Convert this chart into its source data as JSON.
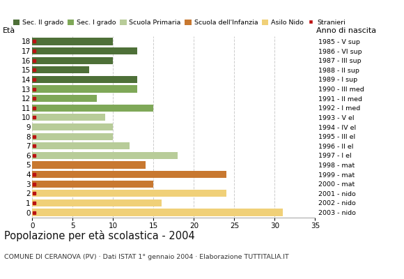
{
  "ages": [
    18,
    17,
    16,
    15,
    14,
    13,
    12,
    11,
    10,
    9,
    8,
    7,
    6,
    5,
    4,
    3,
    2,
    1,
    0
  ],
  "years": [
    "1985 - V sup",
    "1986 - VI sup",
    "1987 - III sup",
    "1988 - II sup",
    "1989 - I sup",
    "1990 - III med",
    "1991 - II med",
    "1992 - I med",
    "1993 - V el",
    "1994 - IV el",
    "1995 - III el",
    "1996 - II el",
    "1997 - I el",
    "1998 - mat",
    "1999 - mat",
    "2000 - mat",
    "2001 - nido",
    "2002 - nido",
    "2003 - nido"
  ],
  "values": [
    10,
    13,
    10,
    7,
    13,
    13,
    8,
    15,
    9,
    10,
    10,
    12,
    18,
    14,
    24,
    15,
    24,
    16,
    31
  ],
  "colors": [
    "#4e7038",
    "#4e7038",
    "#4e7038",
    "#4e7038",
    "#4e7038",
    "#7fa858",
    "#7fa858",
    "#7fa858",
    "#b8cc99",
    "#b8cc99",
    "#b8cc99",
    "#b8cc99",
    "#b8cc99",
    "#c87830",
    "#c87830",
    "#c87830",
    "#f0d078",
    "#f0d078",
    "#f0d078"
  ],
  "stranieri_ages": [
    18,
    17,
    16,
    15,
    14,
    13,
    12,
    11,
    10,
    8,
    7,
    6,
    4,
    3,
    2,
    1,
    0
  ],
  "legend_labels": [
    "Sec. II grado",
    "Sec. I grado",
    "Scuola Primaria",
    "Scuola dell'Infanzia",
    "Asilo Nido",
    "Stranieri"
  ],
  "legend_colors": [
    "#4e7038",
    "#7fa858",
    "#b8cc99",
    "#c87830",
    "#f0d078",
    "#bb1111"
  ],
  "title": "Popolazione per età scolastica - 2004",
  "subtitle": "COMUNE DI CERANOVA (PV) · Dati ISTAT 1° gennaio 2004 · Elaborazione TUTTITALIA.IT",
  "eta_label": "Età",
  "anno_label": "Anno di nascita",
  "xlim": [
    0,
    35
  ],
  "xticks": [
    0,
    5,
    10,
    15,
    20,
    25,
    30,
    35
  ],
  "bar_height": 0.75,
  "stranieri_color": "#bb1111",
  "bg_color": "#ffffff",
  "grid_color": "#cccccc"
}
